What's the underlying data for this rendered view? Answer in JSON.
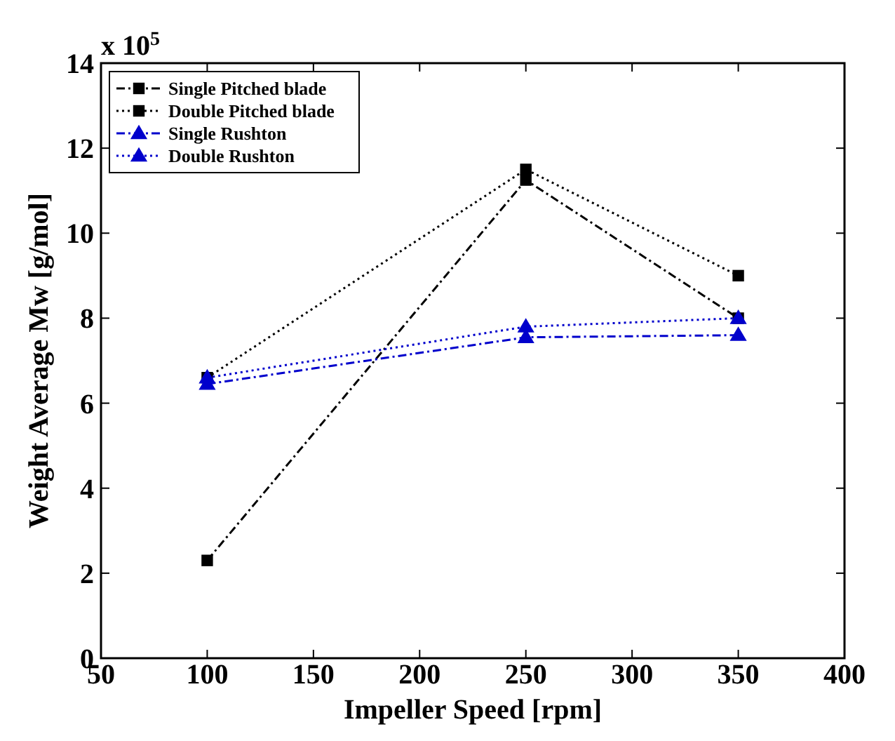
{
  "chart_data": {
    "type": "line",
    "xlabel": "Impeller Speed [rpm]",
    "ylabel": "Weight Average Mw [g/mol]",
    "annotations": [
      "x 10$^{5}$"
    ],
    "x": [
      100,
      250,
      350
    ],
    "xlim": [
      50,
      400
    ],
    "xticks": [
      50,
      100,
      150,
      200,
      250,
      300,
      350,
      400
    ],
    "ylim": [
      0,
      14
    ],
    "yticks": [
      0,
      2,
      4,
      6,
      8,
      10,
      12,
      14
    ],
    "grid": false,
    "legend": "top left",
    "series": [
      {
        "name": "Single Pitched blade",
        "color": "#000000",
        "values": [
          2.3,
          11.25,
          8.0
        ],
        "marker": "square",
        "line_style": "dashdot"
      },
      {
        "name": "Double Pitched blade",
        "color": "#000000",
        "values": [
          6.6,
          11.5,
          9.0
        ],
        "marker": "square",
        "line_style": "dotted"
      },
      {
        "name": "Single Rushton",
        "color": "#0000cc",
        "values": [
          6.45,
          7.55,
          7.6
        ],
        "marker": "triangle",
        "line_style": "dashdot"
      },
      {
        "name": "Double Rushton",
        "color": "#0000cc",
        "values": [
          6.6,
          7.8,
          8.0
        ],
        "marker": "triangle",
        "line_style": "dotted"
      }
    ]
  }
}
